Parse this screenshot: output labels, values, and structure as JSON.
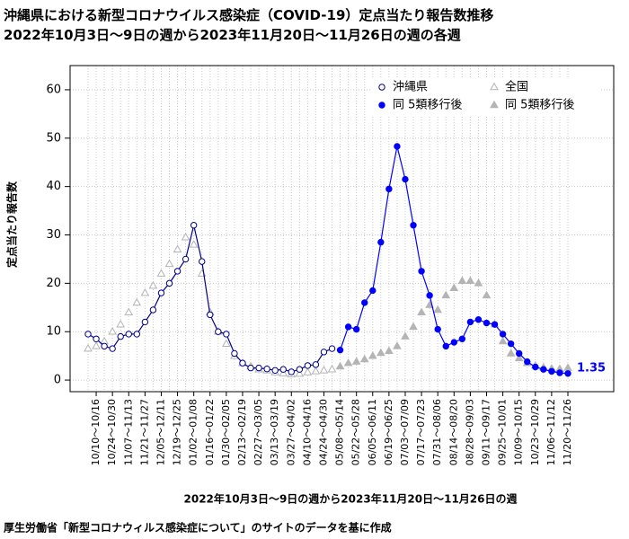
{
  "chart_data": {
    "type": "line",
    "title": "沖縄県における新型コロナウイルス感染症（COVID-19）定点当たり報告数推移",
    "subtitle": "2022年10月3日～9日の週から2023年11月20日～11月26日の週の各週",
    "x_label": "2022年10月3日～9日の週から2023年11月20日～11月26日の週",
    "y_label": "定点当たり報告数",
    "source": "厚生労働省「新型コロナウィルス感染症について」のサイトのデータを基に作成",
    "end_label": "1.35",
    "categories": [
      null,
      "10/10～10/16",
      null,
      "10/24～10/30",
      null,
      "11/07～11/13",
      null,
      "11/21～11/27",
      null,
      "12/05～12/11",
      null,
      "12/19～12/25",
      null,
      "01/02～01/08",
      null,
      "01/16～01/22",
      null,
      "01/30～02/05",
      null,
      "02/13～02/19",
      null,
      "02/27～03/05",
      null,
      "03/13～03/19",
      null,
      "03/27～04/02",
      null,
      "04/10～04/16",
      null,
      "04/24～04/30",
      null,
      "05/08～05/14",
      null,
      "05/22～05/28",
      null,
      "06/05～06/11",
      null,
      "06/19～06/25",
      null,
      "07/03～07/09",
      null,
      "07/17～07/23",
      null,
      "07/31～08/06",
      null,
      "08/14～08/20",
      null,
      "08/28～09/03",
      null,
      "09/11～09/17",
      null,
      "09/25～10/01",
      null,
      "10/09～10/15",
      null,
      "10/23～10/29",
      null,
      "11/06～11/12",
      null,
      "11/20～11/26"
    ],
    "series": [
      {
        "name": "沖縄県",
        "color": "#00008b",
        "marker": "circle",
        "filled": false,
        "line": true,
        "values": [
          9.5,
          8.5,
          7,
          6.5,
          9,
          9.5,
          9.5,
          12,
          14.5,
          18,
          20,
          22.5,
          25,
          32,
          24.5,
          13.5,
          10,
          9.5,
          5.5,
          3.5,
          2.5,
          2.5,
          2.3,
          2,
          2.2,
          1.7,
          2.2,
          3,
          3.2,
          5.8,
          6.5,
          null,
          null,
          null,
          null,
          null,
          null,
          null,
          null,
          null,
          null,
          null,
          null,
          null,
          null,
          null,
          null,
          null,
          null,
          null,
          null,
          null,
          null,
          null,
          null,
          null,
          null,
          null,
          null,
          null
        ]
      },
      {
        "name": "同 5類移行後",
        "color": "#0000ff",
        "marker": "circle",
        "filled": true,
        "line": true,
        "values": [
          null,
          null,
          null,
          null,
          null,
          null,
          null,
          null,
          null,
          null,
          null,
          null,
          null,
          null,
          null,
          null,
          null,
          null,
          null,
          null,
          null,
          null,
          null,
          null,
          null,
          null,
          null,
          null,
          null,
          null,
          null,
          6.2,
          11,
          10.5,
          16,
          18.5,
          28.5,
          39.5,
          48.3,
          41.5,
          32,
          22.5,
          17.5,
          10.5,
          7,
          7.8,
          8.5,
          12,
          12.5,
          11.8,
          11.5,
          9.5,
          7.5,
          5.5,
          3.8,
          2.7,
          2.2,
          1.8,
          1.5,
          1.35
        ]
      },
      {
        "name": "全国",
        "color": "#b4b4b4",
        "marker": "triangle",
        "filled": false,
        "line": false,
        "values": [
          6.5,
          7,
          8,
          10,
          11.5,
          14,
          16,
          18,
          19.5,
          22,
          24,
          27,
          29.5,
          28,
          22,
          14,
          10,
          7.5,
          5,
          3.5,
          2.8,
          2.2,
          2,
          1.6,
          1.4,
          1.2,
          1.3,
          1.6,
          1.8,
          2,
          2.2,
          null,
          null,
          null,
          null,
          null,
          null,
          null,
          null,
          null,
          null,
          null,
          null,
          null,
          null,
          null,
          null,
          null,
          null,
          null,
          null,
          null,
          null,
          null,
          null,
          null,
          null,
          null,
          null,
          null
        ]
      },
      {
        "name": "同 5類移行後",
        "color": "#b4b4b4",
        "marker": "triangle",
        "filled": true,
        "line": false,
        "values": [
          null,
          null,
          null,
          null,
          null,
          null,
          null,
          null,
          null,
          null,
          null,
          null,
          null,
          null,
          null,
          null,
          null,
          null,
          null,
          null,
          null,
          null,
          null,
          null,
          null,
          null,
          null,
          null,
          null,
          null,
          null,
          2.8,
          3.5,
          3.8,
          4.3,
          5,
          5.6,
          6,
          7,
          9,
          11,
          14,
          15.5,
          14.5,
          17.5,
          19,
          20.5,
          20.5,
          20,
          17.5,
          11.5,
          8,
          5.5,
          4.5,
          3.5,
          3,
          2.6,
          2.4,
          2.3,
          2.5
        ]
      }
    ],
    "ylim": [
      -2.4,
      65
    ],
    "yticks": [
      0,
      10,
      20,
      30,
      40,
      50,
      60
    ],
    "grid": true,
    "legend": "upper right"
  }
}
